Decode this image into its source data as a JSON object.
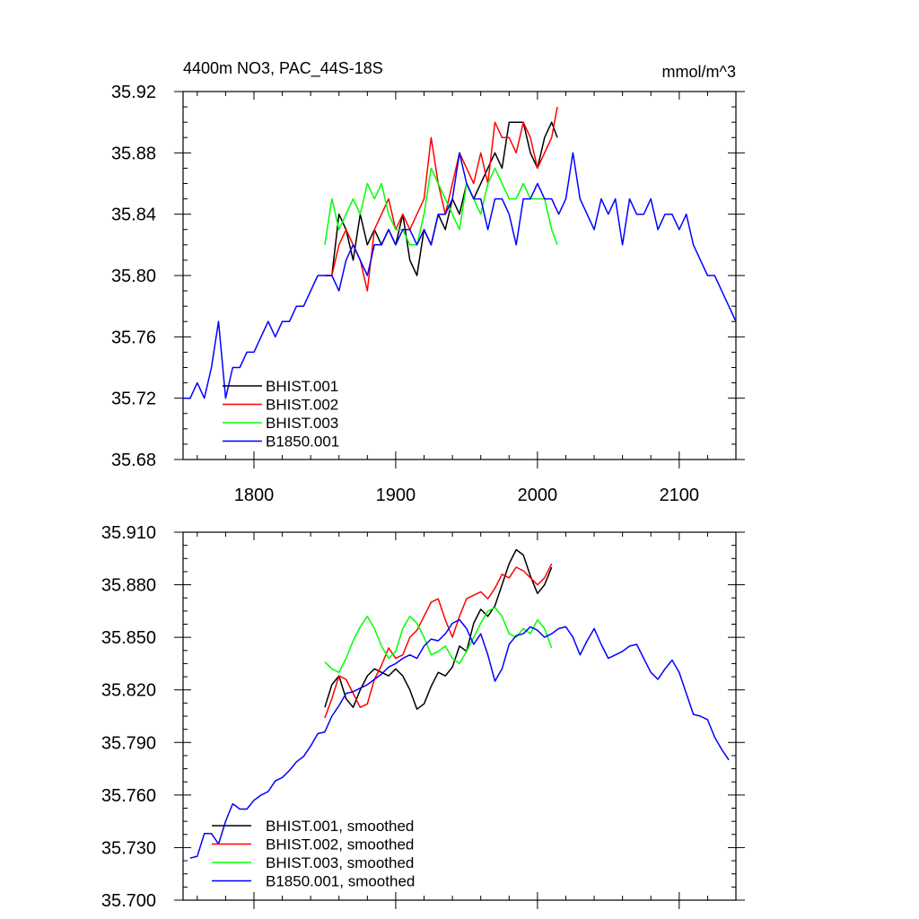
{
  "chart_data": [
    {
      "type": "line",
      "title": "4400m NO3, PAC_44S-18S",
      "units": "mmol/m^3",
      "xlim": [
        1750,
        2140
      ],
      "ylim": [
        35.68,
        35.92
      ],
      "x_ticks": [
        1800,
        1900,
        2000,
        2100
      ],
      "x_tick_labels": [
        "1800",
        "1900",
        "2000",
        "2100"
      ],
      "y_ticks": [
        35.68,
        35.72,
        35.76,
        35.8,
        35.84,
        35.88,
        35.92
      ],
      "y_tick_labels": [
        "35.68",
        "35.72",
        "35.76",
        "35.80",
        "35.84",
        "35.88",
        "35.92"
      ],
      "legend_position": "bottom-left",
      "series": [
        {
          "name": "BHIST.001",
          "color": "#000000",
          "x": [
            1850,
            1855,
            1860,
            1865,
            1870,
            1875,
            1880,
            1885,
            1890,
            1895,
            1900,
            1905,
            1910,
            1915,
            1920,
            1925,
            1930,
            1935,
            1940,
            1945,
            1950,
            1955,
            1960,
            1965,
            1970,
            1975,
            1980,
            1985,
            1990,
            1995,
            2000,
            2005,
            2010,
            2014
          ],
          "y": [
            35.8,
            35.8,
            35.84,
            35.83,
            35.81,
            35.84,
            35.82,
            35.83,
            35.82,
            35.83,
            35.82,
            35.84,
            35.81,
            35.8,
            35.83,
            35.82,
            35.84,
            35.83,
            35.85,
            35.84,
            35.86,
            35.85,
            35.86,
            35.87,
            35.88,
            35.87,
            35.9,
            35.9,
            35.9,
            35.88,
            35.87,
            35.89,
            35.9,
            35.89
          ]
        },
        {
          "name": "BHIST.002",
          "color": "#ff0000",
          "x": [
            1850,
            1855,
            1860,
            1865,
            1870,
            1875,
            1880,
            1885,
            1890,
            1895,
            1900,
            1905,
            1910,
            1915,
            1920,
            1925,
            1930,
            1935,
            1940,
            1945,
            1950,
            1955,
            1960,
            1965,
            1970,
            1975,
            1980,
            1985,
            1990,
            1995,
            2000,
            2005,
            2010,
            2014
          ],
          "y": [
            35.8,
            35.8,
            35.82,
            35.83,
            35.82,
            35.81,
            35.79,
            35.83,
            35.84,
            35.85,
            35.83,
            35.84,
            35.83,
            35.84,
            35.85,
            35.89,
            35.86,
            35.84,
            35.86,
            35.88,
            35.87,
            35.86,
            35.88,
            35.86,
            35.9,
            35.89,
            35.89,
            35.88,
            35.9,
            35.89,
            35.87,
            35.88,
            35.89,
            35.91
          ]
        },
        {
          "name": "BHIST.003",
          "color": "#00ff00",
          "x": [
            1850,
            1855,
            1860,
            1865,
            1870,
            1875,
            1880,
            1885,
            1890,
            1895,
            1900,
            1905,
            1910,
            1915,
            1920,
            1925,
            1930,
            1935,
            1940,
            1945,
            1950,
            1955,
            1960,
            1965,
            1970,
            1975,
            1980,
            1985,
            1990,
            1995,
            2000,
            2005,
            2010,
            2014
          ],
          "y": [
            35.82,
            35.85,
            35.83,
            35.84,
            35.85,
            35.84,
            35.86,
            35.85,
            35.86,
            35.84,
            35.83,
            35.83,
            35.82,
            35.82,
            35.84,
            35.87,
            35.86,
            35.85,
            35.84,
            35.83,
            35.86,
            35.85,
            35.84,
            35.86,
            35.87,
            35.86,
            35.85,
            35.85,
            35.86,
            35.85,
            35.85,
            35.85,
            35.83,
            35.82
          ]
        },
        {
          "name": "B1850.001",
          "color": "#0000ff",
          "x": [
            1750,
            1755,
            1760,
            1765,
            1770,
            1775,
            1780,
            1785,
            1790,
            1795,
            1800,
            1805,
            1810,
            1815,
            1820,
            1825,
            1830,
            1835,
            1840,
            1845,
            1850,
            1855,
            1860,
            1865,
            1870,
            1875,
            1880,
            1885,
            1890,
            1895,
            1900,
            1905,
            1910,
            1915,
            1920,
            1925,
            1930,
            1935,
            1940,
            1945,
            1950,
            1955,
            1960,
            1965,
            1970,
            1975,
            1980,
            1985,
            1990,
            1995,
            2000,
            2005,
            2010,
            2015,
            2020,
            2025,
            2030,
            2035,
            2040,
            2045,
            2050,
            2055,
            2060,
            2065,
            2070,
            2075,
            2080,
            2085,
            2090,
            2095,
            2100,
            2105,
            2110,
            2115,
            2120,
            2125,
            2130,
            2135,
            2140
          ],
          "y": [
            35.72,
            35.72,
            35.73,
            35.72,
            35.74,
            35.77,
            35.72,
            35.74,
            35.74,
            35.75,
            35.75,
            35.76,
            35.77,
            35.76,
            35.77,
            35.77,
            35.78,
            35.78,
            35.79,
            35.8,
            35.8,
            35.8,
            35.79,
            35.81,
            35.82,
            35.81,
            35.8,
            35.82,
            35.82,
            35.83,
            35.82,
            35.83,
            35.83,
            35.82,
            35.83,
            35.82,
            35.84,
            35.84,
            35.85,
            35.88,
            35.86,
            35.85,
            35.85,
            35.83,
            35.85,
            35.85,
            35.84,
            35.82,
            35.85,
            35.85,
            35.86,
            35.85,
            35.85,
            35.84,
            35.85,
            35.88,
            35.85,
            35.84,
            35.83,
            35.85,
            35.84,
            35.85,
            35.82,
            35.85,
            35.84,
            35.84,
            35.85,
            35.83,
            35.84,
            35.84,
            35.83,
            35.84,
            35.82,
            35.81,
            35.8,
            35.8,
            35.79,
            35.78,
            35.77
          ]
        }
      ]
    },
    {
      "type": "line",
      "xlim": [
        1750,
        2140
      ],
      "ylim": [
        35.7,
        35.91
      ],
      "x_ticks": [
        1800,
        1900,
        2000,
        2100
      ],
      "y_ticks": [
        35.7,
        35.73,
        35.76,
        35.79,
        35.82,
        35.85,
        35.88,
        35.91
      ],
      "y_tick_labels": [
        "35.700",
        "35.730",
        "35.760",
        "35.790",
        "35.820",
        "35.850",
        "35.880",
        "35.910"
      ],
      "legend_position": "bottom-left",
      "series": [
        {
          "name": "BHIST.001, smoothed",
          "color": "#000000",
          "x": [
            1850,
            1855,
            1860,
            1865,
            1870,
            1875,
            1880,
            1885,
            1890,
            1895,
            1900,
            1905,
            1910,
            1915,
            1920,
            1925,
            1930,
            1935,
            1940,
            1945,
            1950,
            1955,
            1960,
            1965,
            1970,
            1975,
            1980,
            1985,
            1990,
            1995,
            2000,
            2005,
            2010
          ],
          "y": [
            35.81,
            35.823,
            35.828,
            35.815,
            35.81,
            35.82,
            35.828,
            35.832,
            35.83,
            35.828,
            35.832,
            35.828,
            35.82,
            35.809,
            35.812,
            35.822,
            35.83,
            35.828,
            35.833,
            35.845,
            35.842,
            35.858,
            35.866,
            35.862,
            35.868,
            35.88,
            35.892,
            35.9,
            35.897,
            35.885,
            35.875,
            35.88,
            35.89
          ]
        },
        {
          "name": "BHIST.002, smoothed",
          "color": "#ff0000",
          "x": [
            1850,
            1855,
            1860,
            1865,
            1870,
            1875,
            1880,
            1885,
            1890,
            1895,
            1900,
            1905,
            1910,
            1915,
            1920,
            1925,
            1930,
            1935,
            1940,
            1945,
            1950,
            1955,
            1960,
            1965,
            1970,
            1975,
            1980,
            1985,
            1990,
            1995,
            2000,
            2005,
            2010
          ],
          "y": [
            35.804,
            35.815,
            35.828,
            35.826,
            35.818,
            35.81,
            35.812,
            35.826,
            35.834,
            35.844,
            35.838,
            35.84,
            35.85,
            35.854,
            35.862,
            35.87,
            35.872,
            35.86,
            35.85,
            35.862,
            35.872,
            35.874,
            35.876,
            35.872,
            35.878,
            35.886,
            35.884,
            35.89,
            35.888,
            35.884,
            35.88,
            35.884,
            35.892
          ]
        },
        {
          "name": "BHIST.003, smoothed",
          "color": "#00ff00",
          "x": [
            1850,
            1855,
            1860,
            1865,
            1870,
            1875,
            1880,
            1885,
            1890,
            1895,
            1900,
            1905,
            1910,
            1915,
            1920,
            1925,
            1930,
            1935,
            1940,
            1945,
            1950,
            1955,
            1960,
            1965,
            1970,
            1975,
            1980,
            1985,
            1990,
            1995,
            2000,
            2005,
            2010
          ],
          "y": [
            35.836,
            35.832,
            35.83,
            35.838,
            35.848,
            35.856,
            35.862,
            35.855,
            35.845,
            35.838,
            35.842,
            35.855,
            35.862,
            35.858,
            35.85,
            35.84,
            35.842,
            35.845,
            35.838,
            35.835,
            35.842,
            35.85,
            35.858,
            35.865,
            35.867,
            35.862,
            35.852,
            35.85,
            35.855,
            35.852,
            35.86,
            35.855,
            35.844
          ]
        },
        {
          "name": "B1850.001, smoothed",
          "color": "#0000ff",
          "x": [
            1755,
            1760,
            1765,
            1770,
            1775,
            1780,
            1785,
            1790,
            1795,
            1800,
            1805,
            1810,
            1815,
            1820,
            1825,
            1830,
            1835,
            1840,
            1845,
            1850,
            1855,
            1860,
            1865,
            1870,
            1875,
            1880,
            1885,
            1890,
            1895,
            1900,
            1905,
            1910,
            1915,
            1920,
            1925,
            1930,
            1935,
            1940,
            1945,
            1950,
            1955,
            1960,
            1965,
            1970,
            1975,
            1980,
            1985,
            1990,
            1995,
            2000,
            2005,
            2010,
            2015,
            2020,
            2025,
            2030,
            2035,
            2040,
            2045,
            2050,
            2055,
            2060,
            2065,
            2070,
            2075,
            2080,
            2085,
            2090,
            2095,
            2100,
            2105,
            2110,
            2115,
            2120,
            2125,
            2130,
            2135
          ],
          "y": [
            35.724,
            35.725,
            35.738,
            35.738,
            35.732,
            35.745,
            35.755,
            35.752,
            35.752,
            35.757,
            35.76,
            35.762,
            35.768,
            35.77,
            35.774,
            35.779,
            35.782,
            35.788,
            35.795,
            35.796,
            35.805,
            35.811,
            35.818,
            35.819,
            35.821,
            35.823,
            35.826,
            35.829,
            35.833,
            35.835,
            35.838,
            35.84,
            35.838,
            35.845,
            35.849,
            35.848,
            35.852,
            35.858,
            35.86,
            35.855,
            35.846,
            35.852,
            35.84,
            35.825,
            35.832,
            35.846,
            35.851,
            35.852,
            35.856,
            35.854,
            35.85,
            35.852,
            35.855,
            35.856,
            35.85,
            35.84,
            35.848,
            35.855,
            35.846,
            35.838,
            35.84,
            35.842,
            35.845,
            35.846,
            35.838,
            35.83,
            35.826,
            35.832,
            35.837,
            35.83,
            35.818,
            35.806,
            35.805,
            35.803,
            35.793,
            35.786,
            35.78
          ]
        }
      ]
    }
  ]
}
